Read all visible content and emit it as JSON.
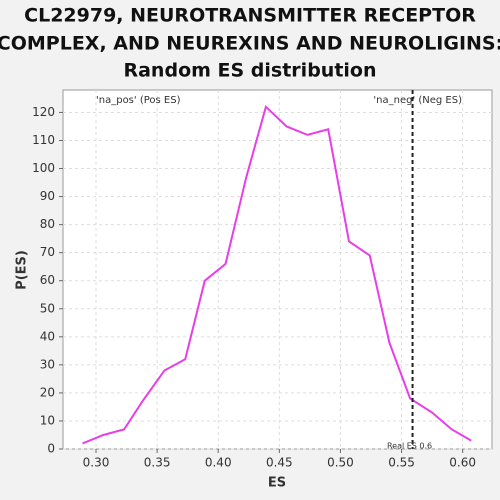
{
  "chart_data": {
    "type": "line",
    "title": [
      "CL22979, NEUROTRANSMITTER RECEPTOR",
      "COMPLEX, AND NEUREXINS AND NEUROLIGINS:",
      "Random ES distribution"
    ],
    "x_label": "ES",
    "y_label": "P(ES)",
    "annotations": [
      {
        "text": "'na_pos' (Pos ES)",
        "color": "#e03030"
      },
      {
        "text": "'na_neg' (Neg ES)",
        "color": "#3030d0"
      }
    ],
    "x": [
      0.289,
      0.306,
      0.323,
      0.338,
      0.356,
      0.373,
      0.389,
      0.406,
      0.423,
      0.439,
      0.456,
      0.473,
      0.49,
      0.507,
      0.524,
      0.54,
      0.557,
      0.575,
      0.591,
      0.607
    ],
    "series": [
      {
        "name": "P(ES)",
        "color": "#e83ee8",
        "values": [
          2,
          5,
          7,
          17,
          28,
          32,
          60,
          66,
          97,
          122,
          115,
          112,
          114,
          74,
          69,
          38,
          18,
          13,
          7,
          3
        ]
      }
    ],
    "vline": {
      "x": 0.559,
      "label": "Real ES 0.6"
    },
    "xlim": [
      0.273,
      0.624
    ],
    "ylim": [
      0,
      128
    ],
    "xticks": [
      {
        "value": 0.3,
        "label": "0.30"
      },
      0.35,
      {
        "value": 0.4,
        "label": "0.40"
      },
      0.45,
      {
        "value": 0.5,
        "label": "0.50"
      },
      0.55,
      {
        "value": 0.6,
        "label": "0.60"
      }
    ],
    "yticks": [
      0,
      10,
      20,
      30,
      40,
      50,
      60,
      70,
      80,
      90,
      100,
      110,
      120
    ],
    "grid": true
  }
}
